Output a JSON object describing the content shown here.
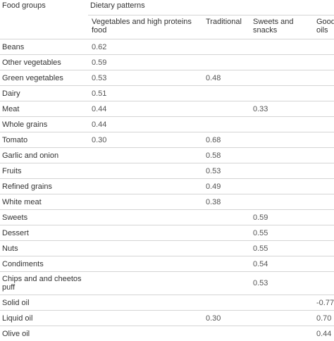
{
  "table": {
    "col0_header": "Food groups",
    "group_header": "Dietary patterns",
    "sub_headers": [
      "Vegetables and high proteins food",
      "Traditional",
      "Sweets and snacks",
      "Good oils"
    ],
    "rows": [
      {
        "label": "Beans",
        "values": [
          "0.62",
          "",
          "",
          ""
        ]
      },
      {
        "label": "Other vegetables",
        "values": [
          "0.59",
          "",
          "",
          ""
        ]
      },
      {
        "label": "Green vegetables",
        "values": [
          "0.53",
          "0.48",
          "",
          ""
        ]
      },
      {
        "label": "Dairy",
        "values": [
          "0.51",
          "",
          "",
          ""
        ]
      },
      {
        "label": "Meat",
        "values": [
          "0.44",
          "",
          "0.33",
          ""
        ]
      },
      {
        "label": "Whole grains",
        "values": [
          "0.44",
          "",
          "",
          ""
        ]
      },
      {
        "label": "Tomato",
        "values": [
          "0.30",
          "0.68",
          "",
          ""
        ]
      },
      {
        "label": "Garlic and onion",
        "values": [
          "",
          "0.58",
          "",
          ""
        ]
      },
      {
        "label": "Fruits",
        "values": [
          "",
          "0.53",
          "",
          ""
        ]
      },
      {
        "label": "Refined grains",
        "values": [
          "",
          "0.49",
          "",
          ""
        ]
      },
      {
        "label": "White meat",
        "values": [
          "",
          "0.38",
          "",
          ""
        ]
      },
      {
        "label": "Sweets",
        "values": [
          "",
          "",
          "0.59",
          ""
        ]
      },
      {
        "label": "Dessert",
        "values": [
          "",
          "",
          "0.55",
          ""
        ]
      },
      {
        "label": "Nuts",
        "values": [
          "",
          "",
          "0.55",
          ""
        ]
      },
      {
        "label": "Condiments",
        "values": [
          "",
          "",
          "0.54",
          ""
        ]
      },
      {
        "label": "Chips and and cheetos puff",
        "values": [
          "",
          "",
          "0.53",
          ""
        ]
      },
      {
        "label": "Solid oil",
        "values": [
          "",
          "",
          "",
          "-0.77"
        ]
      },
      {
        "label": "Liquid oil",
        "values": [
          "",
          "0.30",
          "",
          "0.70"
        ]
      },
      {
        "label": "Olive oil",
        "values": [
          "",
          "",
          "",
          "0.44"
        ]
      }
    ]
  }
}
